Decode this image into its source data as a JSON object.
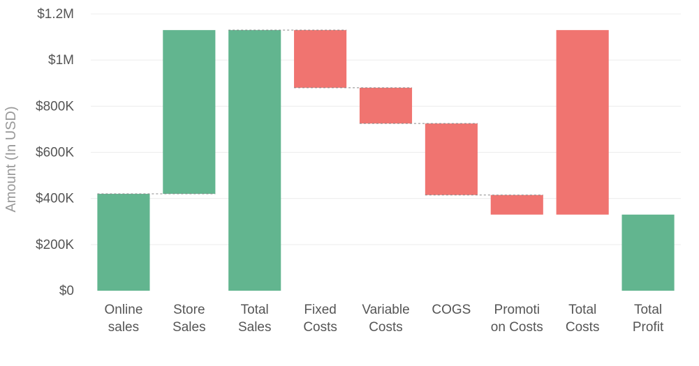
{
  "chart_data": {
    "type": "bar",
    "subtype": "waterfall",
    "title": "",
    "xlabel": "",
    "ylabel": "Amount (In USD)",
    "ylim": [
      0,
      1200000
    ],
    "yticks": [
      {
        "value": 0,
        "label": "$0"
      },
      {
        "value": 200000,
        "label": "$200K"
      },
      {
        "value": 400000,
        "label": "$400K"
      },
      {
        "value": 600000,
        "label": "$600K"
      },
      {
        "value": 800000,
        "label": "$800K"
      },
      {
        "value": 1000000,
        "label": "$1M"
      },
      {
        "value": 1200000,
        "label": "$1.2M"
      }
    ],
    "grid": true,
    "colors": {
      "increase": "#62b58f",
      "decrease": "#f07470",
      "total": "#62b58f"
    },
    "categories": [
      [
        "Online",
        "sales"
      ],
      [
        "Store",
        "Sales"
      ],
      [
        "Total",
        "Sales"
      ],
      [
        "Fixed",
        "Costs"
      ],
      [
        "Variable",
        "Costs"
      ],
      [
        "COGS"
      ],
      [
        "Promoti",
        "on Costs"
      ],
      [
        "Total",
        "Costs"
      ],
      [
        "Total",
        "Profit"
      ]
    ],
    "bars": [
      {
        "start": 0,
        "end": 420000,
        "kind": "increase"
      },
      {
        "start": 420000,
        "end": 1130000,
        "kind": "increase"
      },
      {
        "start": 0,
        "end": 1130000,
        "kind": "total"
      },
      {
        "start": 1130000,
        "end": 880000,
        "kind": "decrease"
      },
      {
        "start": 880000,
        "end": 725000,
        "kind": "decrease"
      },
      {
        "start": 725000,
        "end": 415000,
        "kind": "decrease"
      },
      {
        "start": 415000,
        "end": 330000,
        "kind": "decrease"
      },
      {
        "start": 1130000,
        "end": 330000,
        "kind": "decrease"
      },
      {
        "start": 0,
        "end": 330000,
        "kind": "total"
      }
    ],
    "connectors": [
      {
        "from": 0,
        "to": 1,
        "value": 420000
      },
      {
        "from": 2,
        "to": 3,
        "value": 1130000
      },
      {
        "from": 3,
        "to": 4,
        "value": 880000
      },
      {
        "from": 4,
        "to": 5,
        "value": 725000
      },
      {
        "from": 5,
        "to": 6,
        "value": 415000
      }
    ]
  }
}
